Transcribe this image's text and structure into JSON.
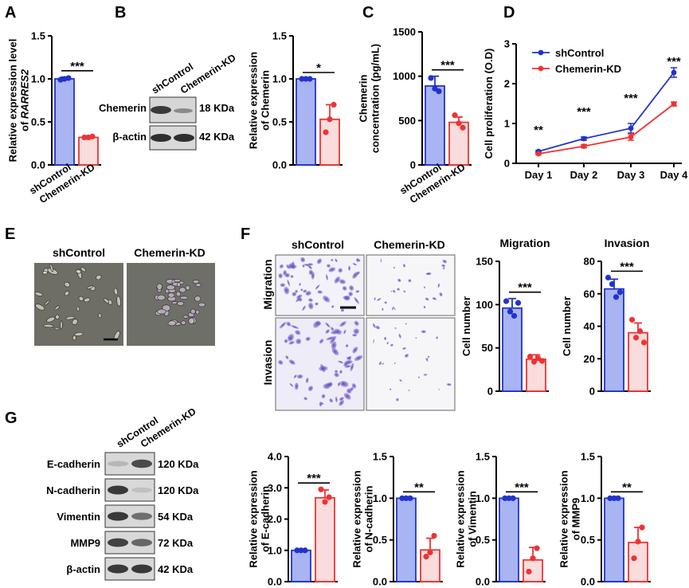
{
  "colors": {
    "blue_fill": "#a9b4f2",
    "blue_edge": "#2233cc",
    "red_fill": "#fbdcdc",
    "red_edge": "#ee3333"
  },
  "panel_letters": [
    "A",
    "B",
    "C",
    "D",
    "E",
    "F",
    "G"
  ],
  "groups": [
    "shControl",
    "Chemerin-KD"
  ],
  "blots": {
    "b": {
      "rows": [
        {
          "protein": "Chemerin",
          "kda": "18 KDa"
        },
        {
          "protein": "β-actin",
          "kda": "42 KDa"
        }
      ]
    },
    "g": {
      "rows": [
        {
          "protein": "E-cadherin",
          "kda": "120 KDa"
        },
        {
          "protein": "N-cadherin",
          "kda": "120 KDa"
        },
        {
          "protein": "Vimentin",
          "kda": "54 KDa"
        },
        {
          "protein": "MMP9",
          "kda": "72 KDa"
        },
        {
          "protein": "β-actin",
          "kda": "42 KDa"
        }
      ]
    }
  },
  "micro": {
    "e": {
      "labels": [
        "shControl",
        "Chemerin-KD"
      ]
    },
    "f": {
      "col_labels": [
        "shControl",
        "Chemerin-KD"
      ],
      "row_labels": [
        "Migration",
        "Invasion"
      ]
    }
  },
  "chart_data": [
    {
      "id": "A",
      "type": "bar",
      "categories": [
        "shControl",
        "Chemerin-KD"
      ],
      "values": [
        1.0,
        0.32
      ],
      "errors": [
        0.02,
        0.01
      ],
      "points": [
        [
          0.99,
          1.0,
          1.01
        ],
        [
          0.32,
          0.32,
          0.33
        ]
      ],
      "ylabel": [
        "Relative expression level",
        "of RARRES2"
      ],
      "ylim": [
        0,
        1.5
      ],
      "ticks": [
        0,
        0.5,
        1.0,
        1.5
      ],
      "tick_labels": [
        "0.0",
        "0.5",
        "1.0",
        "1.5"
      ],
      "sig": "***",
      "show_cat": true
    },
    {
      "id": "B",
      "type": "bar",
      "categories": [
        "shControl",
        "Chemerin-KD"
      ],
      "values": [
        1.0,
        0.53
      ],
      "errors": [
        0,
        0.17
      ],
      "points": [
        [
          1.0,
          1.0,
          1.0
        ],
        [
          0.38,
          0.53,
          0.7
        ]
      ],
      "ylabel": [
        "Relative expression",
        "of Chemerin"
      ],
      "ylim": [
        0,
        1.5
      ],
      "ticks": [
        0,
        0.5,
        1.0,
        1.5
      ],
      "tick_labels": [
        "0.0",
        "0.5",
        "1.0",
        "1.5"
      ],
      "sig": "*",
      "show_cat": false
    },
    {
      "id": "C",
      "type": "bar",
      "categories": [
        "shControl",
        "Chemerin-KD"
      ],
      "values": [
        890,
        480
      ],
      "errors": [
        110,
        60
      ],
      "points": [
        [
          980,
          860,
          830
        ],
        [
          560,
          470,
          420
        ]
      ],
      "ylabel": [
        "Chemerin",
        "concentration (pg/mL)"
      ],
      "ylim": [
        0,
        1500
      ],
      "ticks": [
        0,
        500,
        1000,
        1500
      ],
      "tick_labels": [
        "0",
        "500",
        "1000",
        "1500"
      ],
      "sig": "***",
      "show_cat": true
    },
    {
      "id": "D",
      "type": "line",
      "categories": [
        "Day 1",
        "Day 2",
        "Day 3",
        "Day 4"
      ],
      "series": [
        {
          "name": "shControl",
          "values": [
            0.3,
            0.62,
            0.88,
            2.28
          ],
          "errors": [
            0.02,
            0.04,
            0.12,
            0.12
          ]
        },
        {
          "name": "Chemerin-KD",
          "values": [
            0.24,
            0.43,
            0.66,
            1.49
          ],
          "errors": [
            0.02,
            0.04,
            0.08,
            0.05
          ]
        }
      ],
      "ylabel": [
        "Cell proliferation (O.D)"
      ],
      "ylim": [
        0,
        3
      ],
      "ticks": [
        0,
        1,
        2,
        3
      ],
      "tick_labels": [
        "0",
        "1",
        "2",
        "3"
      ],
      "sig": [
        "**",
        "***",
        "***",
        "***"
      ]
    },
    {
      "id": "Fm",
      "type": "bar",
      "title": "Migration",
      "categories": [
        "shControl",
        "Chemerin-KD"
      ],
      "values": [
        96,
        37
      ],
      "errors": [
        11,
        5
      ],
      "points": [
        [
          104,
          92,
          87,
          102
        ],
        [
          40,
          34,
          38,
          35
        ]
      ],
      "ylabel": [
        "Cell number"
      ],
      "ylim": [
        0,
        150
      ],
      "ticks": [
        0,
        50,
        100,
        150
      ],
      "tick_labels": [
        "0",
        "50",
        "100",
        "150"
      ],
      "sig": "***",
      "show_cat": false
    },
    {
      "id": "Fi",
      "type": "bar",
      "title": "Invasion",
      "categories": [
        "shControl",
        "Chemerin-KD"
      ],
      "values": [
        63,
        36
      ],
      "errors": [
        6,
        6
      ],
      "points": [
        [
          70,
          66,
          58,
          61
        ],
        [
          44,
          33,
          37,
          30
        ]
      ],
      "ylabel": [
        "Cell number"
      ],
      "ylim": [
        0,
        80
      ],
      "ticks": [
        0,
        20,
        40,
        60,
        80
      ],
      "tick_labels": [
        "0",
        "20",
        "40",
        "60",
        "80"
      ],
      "sig": "***",
      "show_cat": false
    },
    {
      "id": "G1",
      "type": "bar",
      "categories": [
        "shControl",
        "Chemerin-KD"
      ],
      "values": [
        1.0,
        2.68
      ],
      "errors": [
        0,
        0.25
      ],
      "points": [
        [
          1.0,
          1.0,
          1.0
        ],
        [
          2.95,
          2.55,
          2.7
        ]
      ],
      "ylabel": [
        "Relative expression",
        "of E-cadherin"
      ],
      "ylim": [
        0,
        4
      ],
      "ticks": [
        0,
        1,
        2,
        3,
        4
      ],
      "tick_labels": [
        "0.0",
        "1.0",
        "2.0",
        "3.0",
        "4.0"
      ],
      "sig": "***",
      "show_cat": false
    },
    {
      "id": "G2",
      "type": "bar",
      "categories": [
        "shControl",
        "Chemerin-KD"
      ],
      "values": [
        1.0,
        0.38
      ],
      "errors": [
        0,
        0.14
      ],
      "points": [
        [
          1.0,
          1.0,
          1.0
        ],
        [
          0.3,
          0.35,
          0.55
        ]
      ],
      "ylabel": [
        "Relative expression",
        "of N-cadherin"
      ],
      "ylim": [
        0,
        1.5
      ],
      "ticks": [
        0,
        0.5,
        1.0,
        1.5
      ],
      "tick_labels": [
        "0.0",
        "0.5",
        "1.0",
        "1.5"
      ],
      "sig": "**",
      "show_cat": false
    },
    {
      "id": "G3",
      "type": "bar",
      "categories": [
        "shControl",
        "Chemerin-KD"
      ],
      "values": [
        1.0,
        0.26
      ],
      "errors": [
        0,
        0.15
      ],
      "points": [
        [
          1.0,
          1.0,
          1.0
        ],
        [
          0.12,
          0.28,
          0.4
        ]
      ],
      "ylabel": [
        "Relative expression",
        "of Vimentin"
      ],
      "ylim": [
        0,
        1.5
      ],
      "ticks": [
        0,
        0.5,
        1.0,
        1.5
      ],
      "tick_labels": [
        "0.0",
        "0.5",
        "1.0",
        "1.5"
      ],
      "sig": "***",
      "show_cat": false
    },
    {
      "id": "G4",
      "type": "bar",
      "categories": [
        "shControl",
        "Chemerin-KD"
      ],
      "values": [
        1.0,
        0.47
      ],
      "errors": [
        0,
        0.18
      ],
      "points": [
        [
          1.0,
          1.0,
          1.0
        ],
        [
          0.28,
          0.48,
          0.65
        ]
      ],
      "ylabel": [
        "Relative expression",
        "of MMP9"
      ],
      "ylim": [
        0,
        1.5
      ],
      "ticks": [
        0,
        0.5,
        1.0,
        1.5
      ],
      "tick_labels": [
        "0.0",
        "0.5",
        "1.0",
        "1.5"
      ],
      "sig": "**",
      "show_cat": false
    }
  ]
}
